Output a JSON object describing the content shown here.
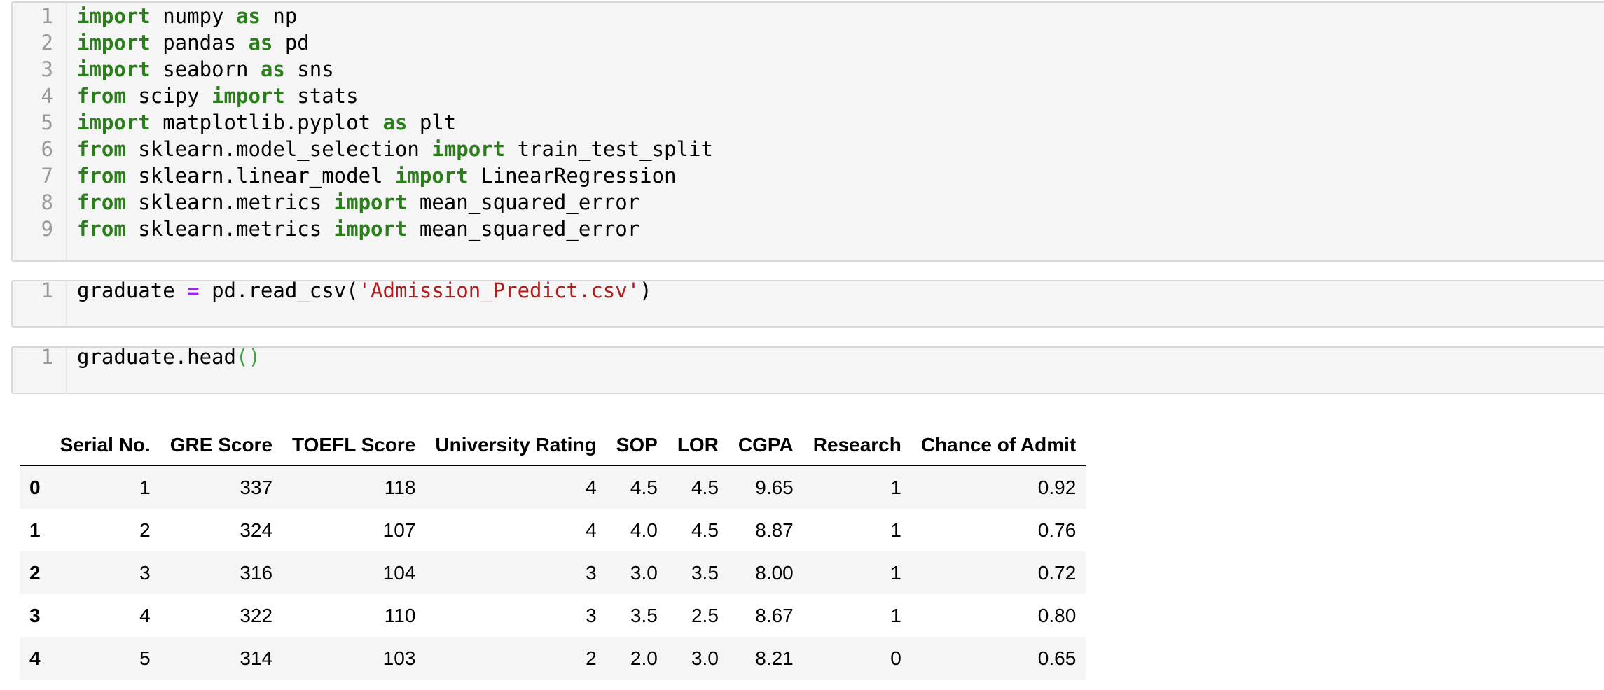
{
  "cells": [
    {
      "type": "code",
      "lines": [
        {
          "n": "1",
          "tokens": [
            {
              "t": "kw",
              "v": "import"
            },
            {
              "t": "tx",
              "v": " numpy "
            },
            {
              "t": "kw",
              "v": "as"
            },
            {
              "t": "tx",
              "v": " np"
            }
          ]
        },
        {
          "n": "2",
          "tokens": [
            {
              "t": "kw",
              "v": "import"
            },
            {
              "t": "tx",
              "v": " pandas "
            },
            {
              "t": "kw",
              "v": "as"
            },
            {
              "t": "tx",
              "v": " pd"
            }
          ]
        },
        {
          "n": "3",
          "tokens": [
            {
              "t": "kw",
              "v": "import"
            },
            {
              "t": "tx",
              "v": " seaborn "
            },
            {
              "t": "kw",
              "v": "as"
            },
            {
              "t": "tx",
              "v": " sns"
            }
          ]
        },
        {
          "n": "4",
          "tokens": [
            {
              "t": "kw",
              "v": "from"
            },
            {
              "t": "tx",
              "v": " scipy "
            },
            {
              "t": "kw",
              "v": "import"
            },
            {
              "t": "tx",
              "v": " stats"
            }
          ]
        },
        {
          "n": "5",
          "tokens": [
            {
              "t": "kw",
              "v": "import"
            },
            {
              "t": "tx",
              "v": " matplotlib.pyplot "
            },
            {
              "t": "kw",
              "v": "as"
            },
            {
              "t": "tx",
              "v": " plt"
            }
          ]
        },
        {
          "n": "6",
          "tokens": [
            {
              "t": "kw",
              "v": "from"
            },
            {
              "t": "tx",
              "v": " sklearn.model_selection "
            },
            {
              "t": "kw",
              "v": "import"
            },
            {
              "t": "tx",
              "v": " train_test_split"
            }
          ]
        },
        {
          "n": "7",
          "tokens": [
            {
              "t": "kw",
              "v": "from"
            },
            {
              "t": "tx",
              "v": " sklearn.linear_model "
            },
            {
              "t": "kw",
              "v": "import"
            },
            {
              "t": "tx",
              "v": " LinearRegression"
            }
          ]
        },
        {
          "n": "8",
          "tokens": [
            {
              "t": "kw",
              "v": "from"
            },
            {
              "t": "tx",
              "v": " sklearn.metrics "
            },
            {
              "t": "kw",
              "v": "import"
            },
            {
              "t": "tx",
              "v": " mean_squared_error"
            }
          ]
        },
        {
          "n": "9",
          "tokens": [
            {
              "t": "kw",
              "v": "from"
            },
            {
              "t": "tx",
              "v": " sklearn.metrics "
            },
            {
              "t": "kw",
              "v": "import"
            },
            {
              "t": "tx",
              "v": " mean_squared_error"
            }
          ]
        }
      ]
    },
    {
      "type": "code",
      "lines": [
        {
          "n": "1",
          "tokens": [
            {
              "t": "tx",
              "v": "graduate "
            },
            {
              "t": "op",
              "v": "="
            },
            {
              "t": "tx",
              "v": " pd.read_csv("
            },
            {
              "t": "str",
              "v": "'Admission_Predict.csv'"
            },
            {
              "t": "tx",
              "v": ")"
            }
          ]
        }
      ]
    },
    {
      "type": "code",
      "lines": [
        {
          "n": "1",
          "tokens": [
            {
              "t": "tx",
              "v": "graduate.head"
            },
            {
              "t": "paren",
              "v": "()"
            }
          ]
        }
      ]
    }
  ],
  "output_table": {
    "columns": [
      "",
      "Serial No.",
      "GRE Score",
      "TOEFL Score",
      "University Rating",
      "SOP",
      "LOR",
      "CGPA",
      "Research",
      "Chance of Admit"
    ],
    "rows": [
      [
        "0",
        "1",
        "337",
        "118",
        "4",
        "4.5",
        "4.5",
        "9.65",
        "1",
        "0.92"
      ],
      [
        "1",
        "2",
        "324",
        "107",
        "4",
        "4.0",
        "4.5",
        "8.87",
        "1",
        "0.76"
      ],
      [
        "2",
        "3",
        "316",
        "104",
        "3",
        "3.0",
        "3.5",
        "8.00",
        "1",
        "0.72"
      ],
      [
        "3",
        "4",
        "322",
        "110",
        "3",
        "3.5",
        "2.5",
        "8.67",
        "1",
        "0.80"
      ],
      [
        "4",
        "5",
        "314",
        "103",
        "2",
        "2.0",
        "3.0",
        "8.21",
        "0",
        "0.65"
      ]
    ]
  },
  "colors": {
    "keyword": "#2a7f1a",
    "operator": "#a020f0",
    "string": "#b11b1b",
    "paren": "#3aa53a",
    "cell_bg": "#f5f5f5",
    "line_number": "#9a9a9a"
  }
}
